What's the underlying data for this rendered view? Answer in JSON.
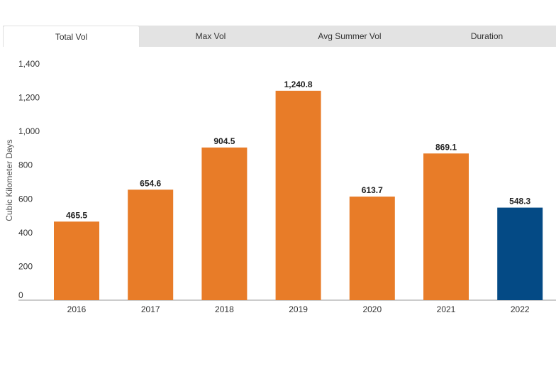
{
  "tabs": [
    {
      "label": "Total Vol",
      "active": true
    },
    {
      "label": "Max Vol",
      "active": false
    },
    {
      "label": "Avg Summer Vol",
      "active": false
    },
    {
      "label": "Duration",
      "active": false
    }
  ],
  "colors": {
    "bar": "#e87c28",
    "highlight": "#044a85",
    "axis": "#999999"
  },
  "chart_data": {
    "type": "bar",
    "categories": [
      "2016",
      "2017",
      "2018",
      "2019",
      "2020",
      "2021",
      "2022"
    ],
    "values": [
      465.5,
      654.6,
      904.5,
      1240.8,
      613.7,
      869.1,
      548.3
    ],
    "value_labels": [
      "465.5",
      "654.6",
      "904.5",
      "1,240.8",
      "613.7",
      "869.1",
      "548.3"
    ],
    "highlight_category": "2022",
    "ylabel": "Cubic Kilometer Days",
    "ylim": [
      0,
      1400
    ],
    "yticks": [
      0,
      200,
      400,
      600,
      800,
      1000,
      1200,
      1400
    ],
    "ytick_labels": [
      "0",
      "200",
      "400",
      "600",
      "800",
      "1,000",
      "1,200",
      "1,400"
    ],
    "grid": false,
    "legend": "none"
  }
}
